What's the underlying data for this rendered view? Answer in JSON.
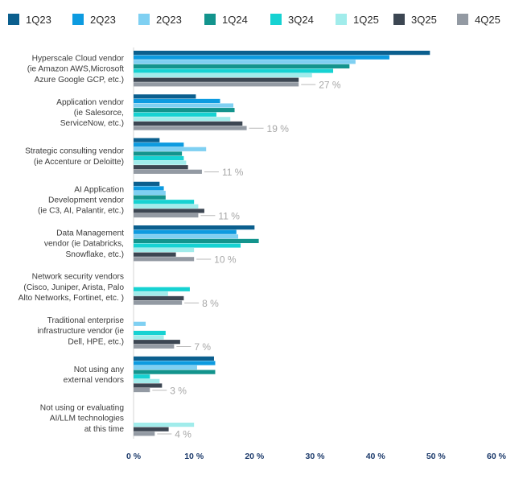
{
  "chart_data": {
    "type": "bar",
    "orientation": "horizontal",
    "title": "",
    "xlabel": "",
    "ylabel": "",
    "xlim": [
      0,
      60
    ],
    "x_ticks": [
      "0 %",
      "10 %",
      "20 %",
      "30 %",
      "40 %",
      "50 %",
      "60 %"
    ],
    "grid": false,
    "legend_position": "top",
    "categories": [
      "Hyperscale Cloud vendor (ie Amazon AWS,Microsoft Azure Google GCP, etc.)",
      "Application vendor (ie Salesorce, ServiceNow, etc.)",
      "Strategic consulting vendor (ie Accenture or Deloitte)",
      "AI Application Development vendor (ie C3, AI, Palantir, etc.)",
      "Data Management vendor (ie Databricks, Snowflake, etc.)",
      "Network security vendors (Cisco, Juniper, Arista, Palo Alto Networks, Fortinet, etc. )",
      "Traditional enterprise infrastructure vendor (ie Dell, HPE, etc.)",
      "Not using any external vendors",
      "Not using or evaluating AI/LLM technologies at this time"
    ],
    "category_lines": [
      [
        "Hyperscale Cloud vendor",
        "(ie Amazon AWS,Microsoft",
        "Azure Google GCP, etc.)"
      ],
      [
        "Application vendor",
        "(ie Salesorce,",
        "ServiceNow, etc.)"
      ],
      [
        "Strategic consulting vendor",
        "(ie Accenture or Deloitte)"
      ],
      [
        "AI Application",
        "Development vendor",
        "(ie C3, AI, Palantir, etc.)"
      ],
      [
        "Data Management",
        "vendor (ie Databricks,",
        "Snowflake, etc.)"
      ],
      [
        "Network security vendors",
        "(Cisco, Juniper, Arista, Palo",
        "Alto Networks, Fortinet, etc. )"
      ],
      [
        "Traditional enterprise",
        "infrastructure vendor (ie",
        "Dell, HPE, etc.)"
      ],
      [
        "Not using any",
        "external vendors"
      ],
      [
        "Not using or evaluating",
        "AI/LLM technologies",
        "at this time"
      ]
    ],
    "series": [
      {
        "name": "1Q23",
        "color": "#0b5f8e",
        "values": [
          49,
          10.3,
          4.3,
          4.3,
          20,
          0,
          0,
          13.3,
          0
        ]
      },
      {
        "name": "2Q23",
        "color": "#0d9be0",
        "values": [
          42.3,
          14.3,
          8.3,
          5,
          17,
          0,
          0,
          13.5,
          0
        ]
      },
      {
        "name": "2Q23",
        "color": "#7fd0f2",
        "values": [
          36.7,
          16.5,
          12,
          5.3,
          17.3,
          0,
          2,
          10.5,
          0
        ]
      },
      {
        "name": "1Q24",
        "color": "#13948d",
        "values": [
          35.7,
          16.7,
          8,
          5.3,
          20.7,
          0,
          0,
          13.5,
          0
        ]
      },
      {
        "name": "3Q24",
        "color": "#16d2d2",
        "values": [
          33,
          13.7,
          8.3,
          10,
          17.7,
          9.3,
          5.3,
          2.7,
          0
        ]
      },
      {
        "name": "1Q25",
        "color": "#a1eceb",
        "values": [
          29.5,
          16,
          8.7,
          10.7,
          10,
          5.7,
          5,
          4.3,
          10
        ]
      },
      {
        "name": "3Q25",
        "color": "#3c4652",
        "values": [
          27.3,
          18,
          9,
          11.7,
          7,
          8.3,
          7.7,
          4.7,
          5.8
        ]
      },
      {
        "name": "4Q25",
        "color": "#939aa3",
        "values": [
          27.3,
          18.7,
          11.3,
          10.7,
          10,
          8,
          6.7,
          2.7,
          3.5
        ]
      }
    ],
    "value_labels": [
      "27 %",
      "19 %",
      "11 %",
      "11 %",
      "10 %",
      "8 %",
      "7 %",
      "3 %",
      "4 %"
    ]
  }
}
